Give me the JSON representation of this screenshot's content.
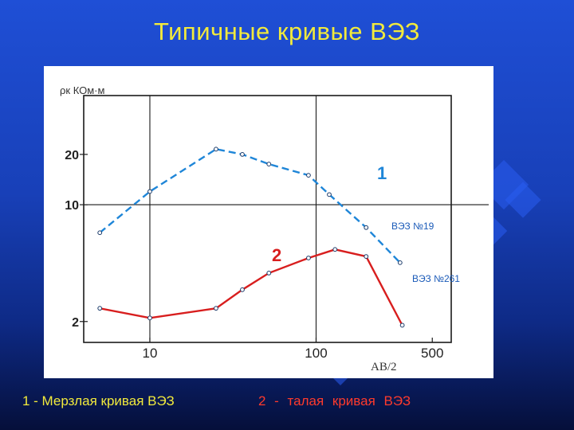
{
  "slide": {
    "title": "Типичные  кривые  ВЭЗ",
    "caption_1": "1 -  Мерзлая кривая  ВЭЗ",
    "caption_2": "2 -   талая   кривая   ВЭЗ"
  },
  "colors": {
    "background": "#1a45c8",
    "title": "#f2ea3c",
    "curve_1": "#1f86d8",
    "curve_2": "#d81e1e",
    "caption_2": "#ff3a2c"
  },
  "chart_data": {
    "type": "line",
    "ylabel": "ρк КОм·м",
    "xlabel": "AB/2",
    "x_scale": "log",
    "y_scale": "log",
    "xlim": [
      4,
      650
    ],
    "ylim": [
      1.5,
      45
    ],
    "x_ticks": [
      10,
      100,
      500
    ],
    "y_ticks": [
      2,
      10,
      20
    ],
    "grid_lines_x": [
      10,
      100
    ],
    "grid_lines_y": [
      10
    ],
    "series": [
      {
        "name": "ВЭЗ №19",
        "marker": "1",
        "style": "dashed",
        "x": [
          5,
          10,
          25,
          36,
          52,
          90,
          120,
          200,
          320
        ],
        "y": [
          6.8,
          12,
          21.5,
          20,
          17.5,
          15,
          11.5,
          7.3,
          4.5
        ]
      },
      {
        "name": "ВЭЗ №261",
        "marker": "2",
        "style": "solid",
        "x": [
          5,
          10,
          25,
          36,
          52,
          90,
          130,
          200,
          330
        ],
        "y": [
          2.4,
          2.1,
          2.4,
          3.1,
          3.9,
          4.8,
          5.4,
          4.9,
          1.9
        ]
      }
    ]
  }
}
